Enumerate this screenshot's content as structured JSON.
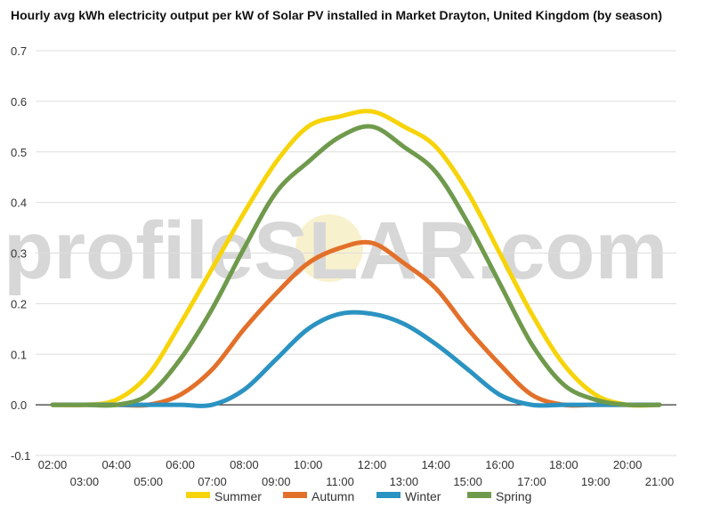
{
  "chart_data": {
    "type": "line",
    "title": "Hourly avg kWh electricity output per kW of Solar PV installed in Market Drayton, United Kingdom (by season)",
    "xlabel": "",
    "ylabel": "",
    "x": [
      "02:00",
      "03:00",
      "04:00",
      "05:00",
      "06:00",
      "07:00",
      "08:00",
      "09:00",
      "10:00",
      "11:00",
      "12:00",
      "13:00",
      "14:00",
      "15:00",
      "16:00",
      "17:00",
      "18:00",
      "19:00",
      "20:00",
      "21:00"
    ],
    "ylim": [
      -0.1,
      0.7
    ],
    "yticks": [
      "-0.1",
      "0.0",
      "0.1",
      "0.2",
      "0.3",
      "0.4",
      "0.5",
      "0.6",
      "0.7"
    ],
    "grid": true,
    "legend": "bottom",
    "series": [
      {
        "name": "Summer",
        "color": "#f7d40a",
        "values": [
          0.0,
          0.0,
          0.01,
          0.06,
          0.16,
          0.27,
          0.38,
          0.48,
          0.55,
          0.57,
          0.58,
          0.55,
          0.51,
          0.42,
          0.3,
          0.18,
          0.08,
          0.02,
          0.0,
          0.0
        ]
      },
      {
        "name": "Autumn",
        "color": "#e3702a",
        "values": [
          0.0,
          0.0,
          0.0,
          0.0,
          0.02,
          0.07,
          0.15,
          0.22,
          0.28,
          0.31,
          0.32,
          0.28,
          0.23,
          0.15,
          0.08,
          0.02,
          0.0,
          0.0,
          0.0,
          0.0
        ]
      },
      {
        "name": "Winter",
        "color": "#2b93c2",
        "values": [
          0.0,
          0.0,
          0.0,
          0.0,
          0.0,
          0.0,
          0.03,
          0.09,
          0.15,
          0.18,
          0.18,
          0.16,
          0.12,
          0.07,
          0.02,
          0.0,
          0.0,
          0.0,
          0.0,
          0.0
        ]
      },
      {
        "name": "Spring",
        "color": "#6f9a4c",
        "values": [
          0.0,
          0.0,
          0.0,
          0.02,
          0.09,
          0.19,
          0.31,
          0.42,
          0.48,
          0.53,
          0.55,
          0.51,
          0.46,
          0.36,
          0.24,
          0.12,
          0.04,
          0.01,
          0.0,
          0.0
        ]
      }
    ]
  },
  "watermark": {
    "pre": "profile",
    "s": "S",
    "post": "LAR.com"
  }
}
